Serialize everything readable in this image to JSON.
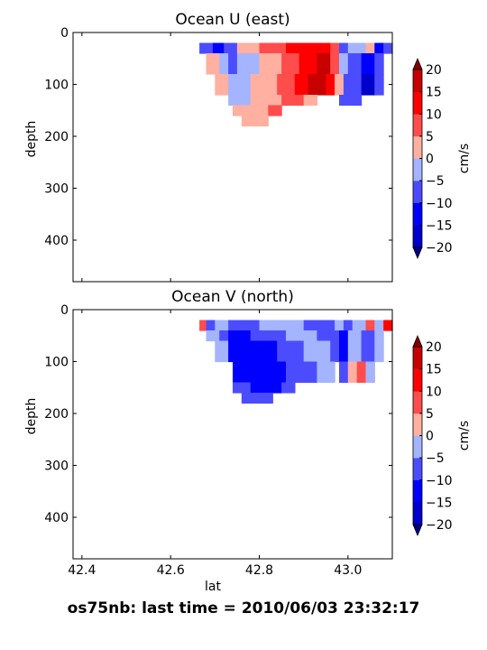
{
  "figure": {
    "suptitle": "os75nb: last time = 2010/06/03 23:32:17"
  },
  "colors": {
    "levels": [
      -20,
      -15,
      -10,
      -5,
      0,
      5,
      10,
      15,
      20
    ],
    "fills": [
      "#0000cc",
      "#0000ff",
      "#4c4cff",
      "#a4b4ff",
      "#ffb0a0",
      "#ff4c4c",
      "#ff0000",
      "#c80000"
    ],
    "under": "#000080",
    "over": "#800000"
  },
  "chart_data": [
    {
      "type": "heatmap",
      "title": "Ocean U (east)",
      "ylabel": "depth",
      "xlabel": "",
      "xlim": [
        42.38,
        43.1
      ],
      "ylim": [
        480,
        0
      ],
      "xticks": [
        42.4,
        42.6,
        42.8,
        43.0
      ],
      "xtick_labels": [
        "",
        "",
        "",
        ""
      ],
      "yticks": [
        0,
        100,
        200,
        300,
        400
      ],
      "ytick_labels": [
        "0",
        "100",
        "200",
        "300",
        "400"
      ],
      "colorbar": {
        "label": "cm/s",
        "ticks": [
          -20,
          -15,
          -10,
          -5,
          0,
          5,
          10,
          15,
          20
        ],
        "tick_labels": [
          "−20",
          "−15",
          "−10",
          "−5",
          "0",
          "5",
          "10",
          "15",
          "20"
        ]
      },
      "cells": [
        {
          "x": [
            42.665,
            42.695
          ],
          "y": [
            20,
            40
          ],
          "v": -6
        },
        {
          "x": [
            42.695,
            42.72
          ],
          "y": [
            20,
            40
          ],
          "v": -12
        },
        {
          "x": [
            42.72,
            42.75
          ],
          "y": [
            20,
            40
          ],
          "v": -6
        },
        {
          "x": [
            42.75,
            42.8
          ],
          "y": [
            20,
            40
          ],
          "v": 3
        },
        {
          "x": [
            42.8,
            42.86
          ],
          "y": [
            20,
            40
          ],
          "v": 8
        },
        {
          "x": [
            42.86,
            42.96
          ],
          "y": [
            20,
            40
          ],
          "v": 12
        },
        {
          "x": [
            42.96,
            42.98
          ],
          "y": [
            20,
            40
          ],
          "v": 8
        },
        {
          "x": [
            42.98,
            43.0
          ],
          "y": [
            20,
            40
          ],
          "v": -7
        },
        {
          "x": [
            43.0,
            43.04
          ],
          "y": [
            20,
            40
          ],
          "v": -4
        },
        {
          "x": [
            43.04,
            43.06
          ],
          "y": [
            20,
            40
          ],
          "v": 3
        },
        {
          "x": [
            43.06,
            43.08
          ],
          "y": [
            20,
            40
          ],
          "v": -11
        },
        {
          "x": [
            43.08,
            43.1
          ],
          "y": [
            20,
            40
          ],
          "v": -7
        },
        {
          "x": [
            42.68,
            42.71
          ],
          "y": [
            40,
            80
          ],
          "v": 3
        },
        {
          "x": [
            42.71,
            42.73
          ],
          "y": [
            40,
            80
          ],
          "v": -4
        },
        {
          "x": [
            42.73,
            42.75
          ],
          "y": [
            40,
            80
          ],
          "v": -7
        },
        {
          "x": [
            42.75,
            42.8
          ],
          "y": [
            40,
            80
          ],
          "v": -3
        },
        {
          "x": [
            42.8,
            42.85
          ],
          "y": [
            40,
            80
          ],
          "v": 3
        },
        {
          "x": [
            42.85,
            42.89
          ],
          "y": [
            40,
            80
          ],
          "v": 8
        },
        {
          "x": [
            42.89,
            42.93
          ],
          "y": [
            40,
            80
          ],
          "v": 13
        },
        {
          "x": [
            42.93,
            42.96
          ],
          "y": [
            40,
            80
          ],
          "v": 17
        },
        {
          "x": [
            42.96,
            42.98
          ],
          "y": [
            40,
            80
          ],
          "v": 8
        },
        {
          "x": [
            42.98,
            43.0
          ],
          "y": [
            40,
            80
          ],
          "v": -4
        },
        {
          "x": [
            43.0,
            43.03
          ],
          "y": [
            40,
            80
          ],
          "v": -8
        },
        {
          "x": [
            43.03,
            43.06
          ],
          "y": [
            40,
            80
          ],
          "v": -13
        },
        {
          "x": [
            43.06,
            43.08
          ],
          "y": [
            40,
            80
          ],
          "v": -7
        },
        {
          "x": [
            42.7,
            42.73
          ],
          "y": [
            80,
            120
          ],
          "v": 3
        },
        {
          "x": [
            42.73,
            42.78
          ],
          "y": [
            80,
            120
          ],
          "v": -3
        },
        {
          "x": [
            42.78,
            42.84
          ],
          "y": [
            80,
            120
          ],
          "v": 3
        },
        {
          "x": [
            42.84,
            42.88
          ],
          "y": [
            80,
            120
          ],
          "v": 8
        },
        {
          "x": [
            42.88,
            42.91
          ],
          "y": [
            80,
            120
          ],
          "v": 13
        },
        {
          "x": [
            42.91,
            42.95
          ],
          "y": [
            80,
            120
          ],
          "v": 17
        },
        {
          "x": [
            42.95,
            42.97
          ],
          "y": [
            80,
            120
          ],
          "v": 12
        },
        {
          "x": [
            42.97,
            42.99
          ],
          "y": [
            80,
            120
          ],
          "v": 3
        },
        {
          "x": [
            42.99,
            43.03
          ],
          "y": [
            80,
            120
          ],
          "v": -8
        },
        {
          "x": [
            43.03,
            43.06
          ],
          "y": [
            80,
            120
          ],
          "v": -16
        },
        {
          "x": [
            43.06,
            43.08
          ],
          "y": [
            80,
            120
          ],
          "v": -8
        },
        {
          "x": [
            42.73,
            42.78
          ],
          "y": [
            120,
            140
          ],
          "v": -3
        },
        {
          "x": [
            42.78,
            42.85
          ],
          "y": [
            120,
            140
          ],
          "v": 3
        },
        {
          "x": [
            42.85,
            42.9
          ],
          "y": [
            120,
            140
          ],
          "v": 8
        },
        {
          "x": [
            42.9,
            42.93
          ],
          "y": [
            120,
            140
          ],
          "v": 3
        },
        {
          "x": [
            42.98,
            43.03
          ],
          "y": [
            120,
            140
          ],
          "v": -7
        },
        {
          "x": [
            42.74,
            42.77
          ],
          "y": [
            140,
            160
          ],
          "v": 3
        },
        {
          "x": [
            42.77,
            42.82
          ],
          "y": [
            140,
            160
          ],
          "v": 3
        },
        {
          "x": [
            42.82,
            42.85
          ],
          "y": [
            140,
            160
          ],
          "v": 8
        },
        {
          "x": [
            42.76,
            42.82
          ],
          "y": [
            160,
            180
          ],
          "v": 3
        }
      ]
    },
    {
      "type": "heatmap",
      "title": "Ocean V (north)",
      "ylabel": "depth",
      "xlabel": "lat",
      "xlim": [
        42.38,
        43.1
      ],
      "ylim": [
        480,
        0
      ],
      "xticks": [
        42.4,
        42.6,
        42.8,
        43.0
      ],
      "xtick_labels": [
        "42.4",
        "42.6",
        "42.8",
        "43.0"
      ],
      "yticks": [
        0,
        100,
        200,
        300,
        400
      ],
      "ytick_labels": [
        "0",
        "100",
        "200",
        "300",
        "400"
      ],
      "colorbar": {
        "label": "cm/s",
        "ticks": [
          -20,
          -15,
          -10,
          -5,
          0,
          5,
          10,
          15,
          20
        ],
        "tick_labels": [
          "−20",
          "−15",
          "−10",
          "−5",
          "0",
          "5",
          "10",
          "15",
          "20"
        ]
      },
      "cells": [
        {
          "x": [
            42.665,
            42.68
          ],
          "y": [
            20,
            40
          ],
          "v": 8
        },
        {
          "x": [
            42.68,
            42.7
          ],
          "y": [
            20,
            40
          ],
          "v": -7
        },
        {
          "x": [
            42.7,
            42.73
          ],
          "y": [
            20,
            40
          ],
          "v": -3
        },
        {
          "x": [
            42.73,
            42.8
          ],
          "y": [
            20,
            40
          ],
          "v": -7
        },
        {
          "x": [
            42.8,
            42.9
          ],
          "y": [
            20,
            40
          ],
          "v": -3
        },
        {
          "x": [
            42.9,
            42.97
          ],
          "y": [
            20,
            40
          ],
          "v": -7
        },
        {
          "x": [
            42.97,
            42.99
          ],
          "y": [
            20,
            40
          ],
          "v": -3
        },
        {
          "x": [
            42.99,
            43.01
          ],
          "y": [
            20,
            40
          ],
          "v": -8
        },
        {
          "x": [
            43.01,
            43.04
          ],
          "y": [
            20,
            40
          ],
          "v": -3
        },
        {
          "x": [
            43.04,
            43.06
          ],
          "y": [
            20,
            40
          ],
          "v": 8
        },
        {
          "x": [
            43.06,
            43.08
          ],
          "y": [
            20,
            40
          ],
          "v": -3
        },
        {
          "x": [
            43.08,
            43.1
          ],
          "y": [
            20,
            40
          ],
          "v": 12
        },
        {
          "x": [
            42.68,
            42.71
          ],
          "y": [
            40,
            60
          ],
          "v": -3
        },
        {
          "x": [
            42.71,
            42.73
          ],
          "y": [
            40,
            60
          ],
          "v": -7
        },
        {
          "x": [
            42.73,
            42.78
          ],
          "y": [
            40,
            60
          ],
          "v": -13
        },
        {
          "x": [
            42.78,
            42.86
          ],
          "y": [
            40,
            60
          ],
          "v": -8
        },
        {
          "x": [
            42.86,
            42.93
          ],
          "y": [
            40,
            60
          ],
          "v": -3
        },
        {
          "x": [
            42.93,
            42.98
          ],
          "y": [
            40,
            60
          ],
          "v": -8
        },
        {
          "x": [
            42.98,
            43.0
          ],
          "y": [
            40,
            60
          ],
          "v": -13
        },
        {
          "x": [
            43.0,
            43.03
          ],
          "y": [
            40,
            60
          ],
          "v": -3
        },
        {
          "x": [
            43.03,
            43.06
          ],
          "y": [
            40,
            60
          ],
          "v": -8
        },
        {
          "x": [
            43.06,
            43.08
          ],
          "y": [
            40,
            60
          ],
          "v": -3
        },
        {
          "x": [
            42.7,
            42.73
          ],
          "y": [
            60,
            100
          ],
          "v": -3
        },
        {
          "x": [
            42.73,
            42.84
          ],
          "y": [
            60,
            100
          ],
          "v": -13
        },
        {
          "x": [
            42.84,
            42.9
          ],
          "y": [
            60,
            100
          ],
          "v": -8
        },
        {
          "x": [
            42.9,
            42.96
          ],
          "y": [
            60,
            100
          ],
          "v": -3
        },
        {
          "x": [
            42.96,
            42.98
          ],
          "y": [
            60,
            100
          ],
          "v": -8
        },
        {
          "x": [
            42.98,
            43.0
          ],
          "y": [
            60,
            100
          ],
          "v": -13
        },
        {
          "x": [
            43.0,
            43.03
          ],
          "y": [
            60,
            100
          ],
          "v": -3
        },
        {
          "x": [
            43.03,
            43.06
          ],
          "y": [
            60,
            100
          ],
          "v": -8
        },
        {
          "x": [
            43.06,
            43.08
          ],
          "y": [
            60,
            100
          ],
          "v": -3
        },
        {
          "x": [
            42.74,
            42.8
          ],
          "y": [
            100,
            140
          ],
          "v": -13
        },
        {
          "x": [
            42.8,
            42.86
          ],
          "y": [
            100,
            140
          ],
          "v": -13
        },
        {
          "x": [
            42.86,
            42.93
          ],
          "y": [
            100,
            140
          ],
          "v": -8
        },
        {
          "x": [
            42.93,
            42.97
          ],
          "y": [
            100,
            140
          ],
          "v": -3
        },
        {
          "x": [
            42.98,
            43.0
          ],
          "y": [
            100,
            140
          ],
          "v": -8
        },
        {
          "x": [
            43.0,
            43.02
          ],
          "y": [
            100,
            140
          ],
          "v": 3
        },
        {
          "x": [
            43.02,
            43.04
          ],
          "y": [
            100,
            140
          ],
          "v": 8
        },
        {
          "x": [
            43.04,
            43.06
          ],
          "y": [
            100,
            140
          ],
          "v": -3
        },
        {
          "x": [
            42.74,
            42.78
          ],
          "y": [
            140,
            160
          ],
          "v": -7
        },
        {
          "x": [
            42.78,
            42.85
          ],
          "y": [
            140,
            160
          ],
          "v": -13
        },
        {
          "x": [
            42.85,
            42.88
          ],
          "y": [
            140,
            160
          ],
          "v": -8
        },
        {
          "x": [
            42.76,
            42.8
          ],
          "y": [
            160,
            180
          ],
          "v": -7
        },
        {
          "x": [
            42.8,
            42.83
          ],
          "y": [
            160,
            180
          ],
          "v": -8
        }
      ]
    }
  ]
}
